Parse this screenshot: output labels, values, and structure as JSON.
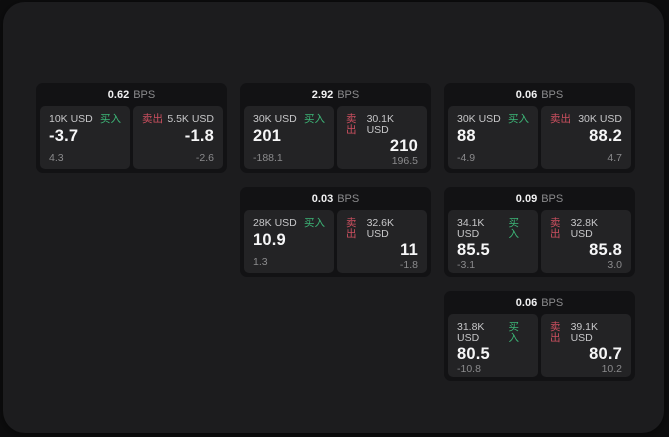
{
  "labels": {
    "bps": "BPS",
    "buy": "买入",
    "sell": "卖出"
  },
  "colors": {
    "outer_background": "#0d0d0e",
    "window_background": "#1c1c1e",
    "card_background": "#121214",
    "tile_background": "#232325",
    "buy_accent": "#3db778",
    "sell_accent": "#cd5060",
    "primary_text": "#f6f6f7",
    "muted_text": "#8b8b8d"
  },
  "cards": [
    {
      "bps": "0.62",
      "buy": {
        "size": "10K USD",
        "price": "-3.7",
        "delta": "4.3"
      },
      "sell": {
        "size": "5.5K USD",
        "price": "-1.8",
        "delta": "-2.6"
      }
    },
    {
      "bps": "2.92",
      "buy": {
        "size": "30K USD",
        "price": "201",
        "delta": "-188.1"
      },
      "sell": {
        "size": "30.1K USD",
        "price": "210",
        "delta": "196.5"
      }
    },
    {
      "bps": "0.06",
      "buy": {
        "size": "30K USD",
        "price": "88",
        "delta": "-4.9"
      },
      "sell": {
        "size": "30K USD",
        "price": "88.2",
        "delta": "4.7"
      }
    },
    {
      "bps": "0.03",
      "buy": {
        "size": "28K USD",
        "price": "10.9",
        "delta": "1.3"
      },
      "sell": {
        "size": "32.6K USD",
        "price": "11",
        "delta": "-1.8"
      }
    },
    {
      "bps": "0.09",
      "buy": {
        "size": "34.1K USD",
        "price": "85.5",
        "delta": "-3.1"
      },
      "sell": {
        "size": "32.8K USD",
        "price": "85.8",
        "delta": "3.0"
      }
    },
    {
      "bps": "0.06",
      "buy": {
        "size": "31.8K USD",
        "price": "80.5",
        "delta": "-10.8"
      },
      "sell": {
        "size": "39.1K USD",
        "price": "80.7",
        "delta": "10.2"
      }
    }
  ]
}
